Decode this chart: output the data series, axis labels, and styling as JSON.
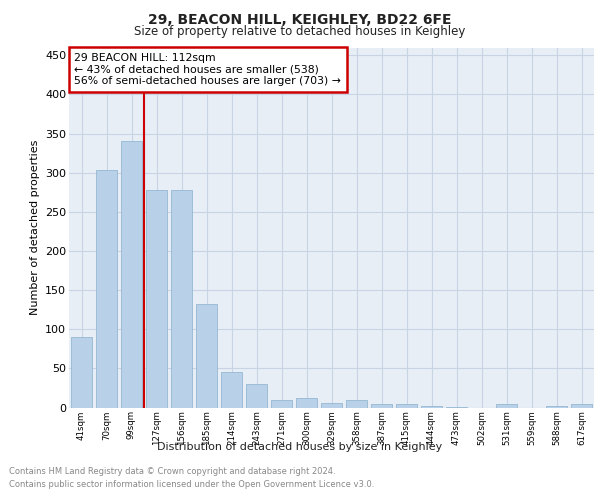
{
  "title1": "29, BEACON HILL, KEIGHLEY, BD22 6FE",
  "title2": "Size of property relative to detached houses in Keighley",
  "xlabel": "Distribution of detached houses by size in Keighley",
  "ylabel": "Number of detached properties",
  "categories": [
    "41sqm",
    "70sqm",
    "99sqm",
    "127sqm",
    "156sqm",
    "185sqm",
    "214sqm",
    "243sqm",
    "271sqm",
    "300sqm",
    "329sqm",
    "358sqm",
    "387sqm",
    "415sqm",
    "444sqm",
    "473sqm",
    "502sqm",
    "531sqm",
    "559sqm",
    "588sqm",
    "617sqm"
  ],
  "values": [
    90,
    303,
    340,
    278,
    278,
    132,
    46,
    30,
    10,
    12,
    6,
    10,
    5,
    4,
    2,
    1,
    0,
    5,
    0,
    2,
    4
  ],
  "bar_color": "#b8d0e8",
  "bar_edge_color": "#8ab0cc",
  "grid_color": "#c8d4e4",
  "background_color": "#e8eef6",
  "annotation_text1": "29 BEACON HILL: 112sqm",
  "annotation_text2": "← 43% of detached houses are smaller (538)",
  "annotation_text3": "56% of semi-detached houses are larger (703) →",
  "annotation_box_color": "#ffffff",
  "annotation_box_edge": "#cc0000",
  "property_line_color": "#cc0000",
  "footer1": "Contains HM Land Registry data © Crown copyright and database right 2024.",
  "footer2": "Contains public sector information licensed under the Open Government Licence v3.0.",
  "ylim": [
    0,
    460
  ],
  "yticks": [
    0,
    50,
    100,
    150,
    200,
    250,
    300,
    350,
    400,
    450
  ]
}
